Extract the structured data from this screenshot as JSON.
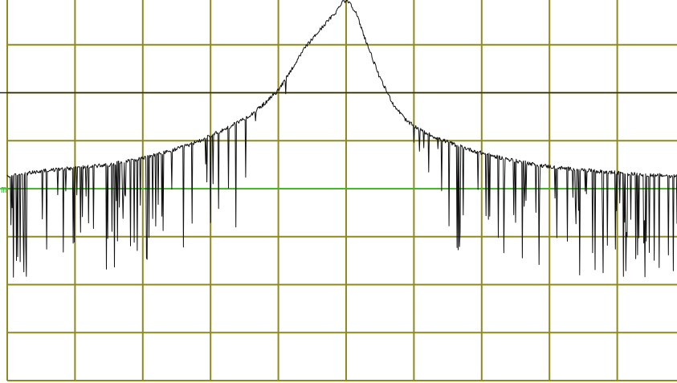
{
  "chart_data": {
    "type": "line",
    "title": "",
    "xlabel": "",
    "ylabel": "",
    "grid": true,
    "xlim": [
      0,
      10
    ],
    "ylim": [
      -8,
      0
    ],
    "grid_divisions": {
      "x": 10,
      "y": 8
    },
    "colors": {
      "grid": "#8e8a1e",
      "trace": "#111111",
      "reference_line": "#222222",
      "threshold_line": "#2fc42f"
    },
    "horizontal_lines": [
      {
        "name": "",
        "y": -2.0,
        "color": "#222222"
      },
      {
        "name": "",
        "y": -4.0,
        "color": "#2fc42f"
      }
    ],
    "threshold_marker_text": "m",
    "series": [
      {
        "name": "",
        "x": [
          0.0,
          0.3,
          0.6,
          0.9,
          1.2,
          1.5,
          1.8,
          2.1,
          2.4,
          2.7,
          3.0,
          3.3,
          3.6,
          3.8,
          4.0,
          4.2,
          4.4,
          4.55,
          4.7,
          4.85,
          4.95,
          5.05,
          5.15,
          5.3,
          5.5,
          5.7,
          5.9,
          6.1,
          6.3,
          6.6,
          6.9,
          7.2,
          7.5,
          7.8,
          8.1,
          8.4,
          8.7,
          9.0,
          9.3,
          9.6,
          10.0
        ],
        "y": [
          -3.75,
          -3.68,
          -3.62,
          -3.58,
          -3.54,
          -3.5,
          -3.42,
          -3.33,
          -3.22,
          -3.08,
          -2.9,
          -2.7,
          -2.45,
          -2.22,
          -1.95,
          -1.5,
          -1.05,
          -0.8,
          -0.55,
          -0.32,
          -0.08,
          -0.1,
          -0.35,
          -0.95,
          -1.7,
          -2.25,
          -2.6,
          -2.78,
          -2.92,
          -3.08,
          -3.22,
          -3.33,
          -3.42,
          -3.5,
          -3.56,
          -3.6,
          -3.64,
          -3.67,
          -3.7,
          -3.72,
          -3.75
        ]
      }
    ]
  }
}
